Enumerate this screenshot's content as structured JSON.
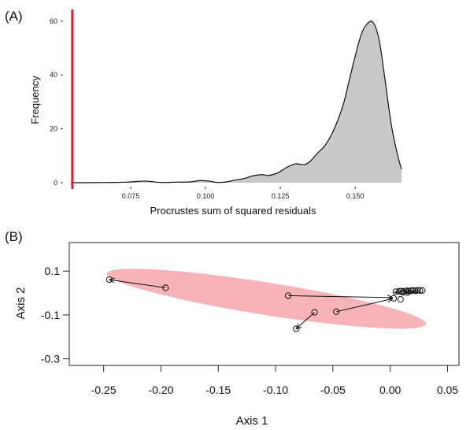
{
  "chart_data": [
    {
      "type": "area",
      "panel_label": "(A)",
      "xlabel": "Procrustes sum of squared residuals",
      "ylabel": "Frequency",
      "xlim": [
        0.055,
        0.166
      ],
      "ylim": [
        0,
        62
      ],
      "x_ticks": [
        {
          "value": 0.075,
          "label": "0.075"
        },
        {
          "value": 0.1,
          "label": "0.100"
        },
        {
          "value": 0.125,
          "label": "0.125"
        },
        {
          "value": 0.15,
          "label": "0.150"
        }
      ],
      "y_ticks": [
        {
          "value": 0,
          "label": "0"
        },
        {
          "value": 20,
          "label": "20"
        },
        {
          "value": 40,
          "label": "40"
        },
        {
          "value": 60,
          "label": "60"
        }
      ],
      "observed_value": 0.0555,
      "observed_color": "#e02020",
      "fill_color": "#c8c8c8",
      "x": [
        0.055,
        0.07,
        0.075,
        0.08,
        0.085,
        0.09,
        0.095,
        0.098,
        0.101,
        0.104,
        0.107,
        0.11,
        0.113,
        0.116,
        0.119,
        0.121,
        0.124,
        0.127,
        0.13,
        0.133,
        0.135,
        0.137,
        0.14,
        0.143,
        0.146,
        0.148,
        0.15,
        0.152,
        0.154,
        0.156,
        0.158,
        0.16,
        0.162,
        0.164,
        0.1655
      ],
      "y": [
        0,
        0.1,
        0.3,
        0.6,
        0.1,
        0.2,
        0.3,
        0.8,
        0.6,
        0.1,
        0.3,
        1.0,
        1.6,
        2.6,
        3.0,
        2.7,
        3.6,
        5.6,
        7.0,
        6.7,
        8.0,
        10.5,
        14.0,
        20.0,
        29.0,
        38.0,
        47.0,
        55.0,
        59.0,
        59.5,
        53.0,
        38.0,
        22.0,
        11.0,
        5.0
      ]
    },
    {
      "type": "scatter",
      "panel_label": "(B)",
      "xlabel": "Axis 1",
      "ylabel": "Axis 2",
      "xlim": [
        -0.28,
        0.06
      ],
      "ylim": [
        -0.33,
        0.23
      ],
      "x_ticks": [
        {
          "value": -0.25,
          "label": "-0.25"
        },
        {
          "value": -0.2,
          "label": "-0.20"
        },
        {
          "value": -0.15,
          "label": "-0.15"
        },
        {
          "value": -0.1,
          "label": "-0.10"
        },
        {
          "value": -0.05,
          "label": "-0.05"
        },
        {
          "value": 0.0,
          "label": "0.00"
        },
        {
          "value": 0.05,
          "label": "0.05"
        }
      ],
      "y_ticks": [
        {
          "value": 0.1,
          "label": "0.1"
        },
        {
          "value": -0.1,
          "label": "-0.1"
        },
        {
          "value": -0.3,
          "label": "-0.3"
        }
      ],
      "ellipse": {
        "cx": -0.108,
        "cy": -0.026,
        "rx": 0.141,
        "ry": 0.074,
        "angle_deg": -9,
        "color": "#f4a6ab"
      },
      "points": [
        {
          "x": -0.196,
          "y": 0.024
        },
        {
          "x": -0.245,
          "y": 0.061
        },
        {
          "x": -0.089,
          "y": -0.012
        },
        {
          "x": -0.066,
          "y": -0.088
        },
        {
          "x": -0.082,
          "y": -0.163
        },
        {
          "x": -0.047,
          "y": -0.085
        },
        {
          "x": 0.003,
          "y": -0.024
        },
        {
          "x": 0.009,
          "y": -0.029
        },
        {
          "x": 0.005,
          "y": 0.006
        },
        {
          "x": 0.008,
          "y": 0.008
        },
        {
          "x": 0.01,
          "y": 0.009
        },
        {
          "x": 0.012,
          "y": 0.007
        },
        {
          "x": 0.014,
          "y": 0.01
        },
        {
          "x": 0.016,
          "y": 0.009
        },
        {
          "x": 0.018,
          "y": 0.011
        },
        {
          "x": 0.02,
          "y": 0.012
        },
        {
          "x": 0.022,
          "y": 0.01
        },
        {
          "x": 0.024,
          "y": 0.013
        },
        {
          "x": 0.026,
          "y": 0.011
        },
        {
          "x": 0.028,
          "y": 0.012
        },
        {
          "x": 0.011,
          "y": 0.003
        },
        {
          "x": 0.015,
          "y": 0.002
        }
      ],
      "arrows": [
        {
          "x1": -0.196,
          "y1": 0.024,
          "x2": -0.245,
          "y2": 0.061
        },
        {
          "x1": -0.089,
          "y1": -0.012,
          "x2": 0.002,
          "y2": -0.021
        },
        {
          "x1": -0.066,
          "y1": -0.088,
          "x2": -0.082,
          "y2": -0.163
        },
        {
          "x1": -0.047,
          "y1": -0.085,
          "x2": 0.002,
          "y2": -0.026
        },
        {
          "x1": 0.014,
          "y1": 0.01,
          "x2": 0.004,
          "y2": 0.002
        },
        {
          "x1": 0.022,
          "y1": 0.01,
          "x2": 0.014,
          "y2": 0.003
        },
        {
          "x1": 0.026,
          "y1": 0.011,
          "x2": 0.019,
          "y2": 0.002
        }
      ]
    }
  ]
}
